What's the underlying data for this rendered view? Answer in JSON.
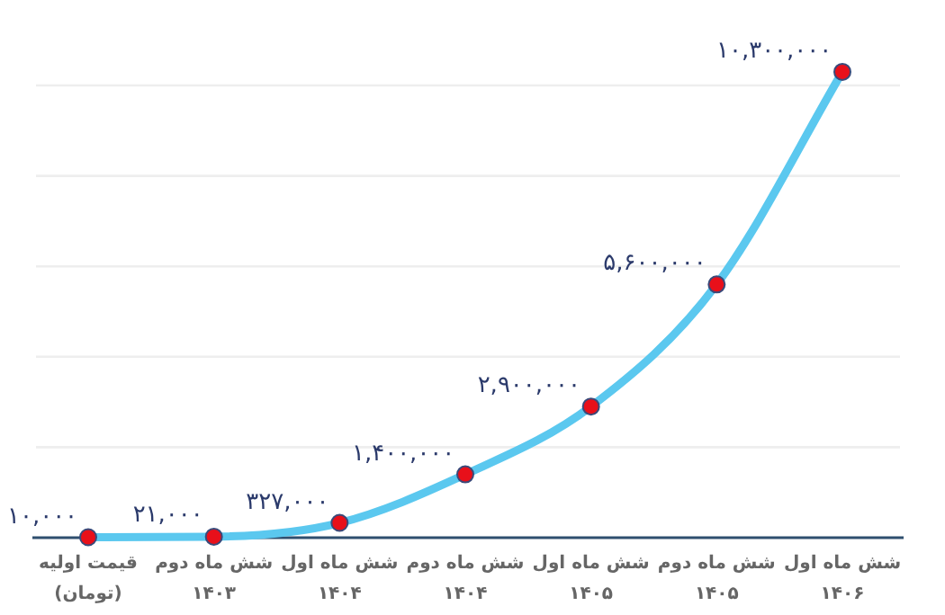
{
  "chart_data": {
    "type": "line",
    "categories": [
      "قیمت اولیه (تومان)",
      "شش ماه دوم ۱۴۰۳",
      "شش ماه اول ۱۴۰۴",
      "شش ماه دوم ۱۴۰۴",
      "شش ماه اول ۱۴۰۵",
      "شش ماه دوم ۱۴۰۵",
      "شش ماه اول ۱۴۰۶"
    ],
    "series": [
      {
        "color": "#5bc8ef",
        "values": [
          10000,
          21000,
          327000,
          1400000,
          2900000,
          5600000,
          10300000
        ],
        "value_labels": [
          "۱۰,۰۰۰",
          "۲۱,۰۰۰",
          "۳۲۷,۰۰۰",
          "۱,۴۰۰,۰۰۰",
          "۲,۹۰۰,۰۰۰",
          "۵,۶۰۰,۰۰۰",
          "۱۰,۳۰۰,۰۰۰"
        ]
      }
    ],
    "yticks": [
      {
        "value": 2000000,
        "label": null
      },
      {
        "value": 4000000,
        "label": null
      },
      {
        "value": 6000000,
        "label": null
      },
      {
        "value": 8000000,
        "label": null
      },
      {
        "value": 10000000,
        "label": null
      }
    ],
    "tick_labels": "x",
    "grid": "y",
    "marker": "circle",
    "line_style": "solid"
  }
}
